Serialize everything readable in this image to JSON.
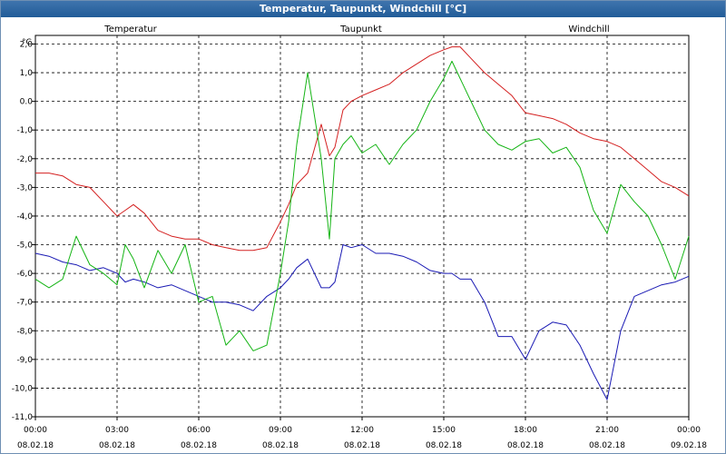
{
  "chart_data": {
    "type": "line",
    "title": "Temperatur, Taupunkt, Windchill [°C]",
    "ylabel": "°C",
    "xlabel": "",
    "ylim": [
      -11.0,
      2.3
    ],
    "xlim": [
      0,
      24
    ],
    "grid": true,
    "legend_position": "top",
    "y_ticks": [
      2.0,
      1.0,
      0.0,
      -1.0,
      -2.0,
      -3.0,
      -4.0,
      -5.0,
      -6.0,
      -7.0,
      -8.0,
      -9.0,
      -10.0,
      -11.0
    ],
    "y_tick_labels": [
      "2,0",
      "1,0",
      "0.0",
      "-1,0",
      "-2,0",
      "-3,0",
      "-4,0",
      "-5,0",
      "-6,0",
      "-7,0",
      "-8,0",
      "-9,0",
      "-10,0",
      "-11,0"
    ],
    "x_ticks": [
      0,
      3,
      6,
      9,
      12,
      15,
      18,
      21,
      24
    ],
    "x_tick_times": [
      "00:00",
      "03:00",
      "06:00",
      "09:00",
      "12:00",
      "15:00",
      "18:00",
      "21:00",
      "00:00"
    ],
    "x_tick_dates": [
      "08.02.18",
      "08.02.18",
      "08.02.18",
      "08.02.18",
      "08.02.18",
      "08.02.18",
      "08.02.18",
      "08.02.18",
      "09.02.18"
    ],
    "series": [
      {
        "name": "Temperatur",
        "color": "#d42020",
        "x": [
          0,
          0.5,
          1.0,
          1.5,
          2.0,
          2.5,
          3.0,
          3.3,
          3.6,
          4.0,
          4.5,
          5.0,
          5.5,
          6.0,
          6.5,
          7.0,
          7.5,
          8.0,
          8.5,
          9.0,
          9.3,
          9.6,
          10.0,
          10.5,
          10.8,
          11.0,
          11.3,
          11.6,
          12.0,
          12.5,
          13.0,
          13.5,
          14.0,
          14.5,
          15.0,
          15.3,
          15.6,
          16.0,
          16.5,
          17.0,
          17.5,
          18.0,
          18.5,
          19.0,
          19.5,
          20.0,
          20.5,
          21.0,
          21.5,
          22.0,
          22.5,
          23.0,
          23.5,
          24.0
        ],
        "values": [
          -2.5,
          -2.5,
          -2.6,
          -2.9,
          -3.0,
          -3.5,
          -4.0,
          -3.8,
          -3.6,
          -3.9,
          -4.5,
          -4.7,
          -4.8,
          -4.8,
          -5.0,
          -5.1,
          -5.2,
          -5.2,
          -5.1,
          -4.2,
          -3.6,
          -2.9,
          -2.5,
          -0.8,
          -1.9,
          -1.6,
          -0.3,
          0.0,
          0.2,
          0.4,
          0.6,
          1.0,
          1.3,
          1.6,
          1.8,
          1.9,
          1.9,
          1.5,
          1.0,
          0.6,
          0.2,
          -0.4,
          -0.5,
          -0.6,
          -0.8,
          -1.1,
          -1.3,
          -1.4,
          -1.6,
          -2.0,
          -2.4,
          -2.8,
          -3.0,
          -3.3
        ]
      },
      {
        "name": "Taupunkt",
        "color": "#1a1ab4",
        "x": [
          0,
          0.5,
          1.0,
          1.5,
          2.0,
          2.5,
          3.0,
          3.3,
          3.6,
          4.0,
          4.5,
          5.0,
          5.5,
          6.0,
          6.5,
          7.0,
          7.5,
          8.0,
          8.5,
          9.0,
          9.3,
          9.6,
          10.0,
          10.5,
          10.8,
          11.0,
          11.3,
          11.6,
          12.0,
          12.5,
          13.0,
          13.5,
          14.0,
          14.5,
          15.0,
          15.3,
          15.6,
          16.0,
          16.5,
          17.0,
          17.5,
          18.0,
          18.5,
          19.0,
          19.5,
          20.0,
          20.5,
          21.0,
          21.5,
          22.0,
          22.5,
          23.0,
          23.5,
          24.0
        ],
        "values": [
          -5.3,
          -5.4,
          -5.6,
          -5.7,
          -5.9,
          -5.8,
          -6.0,
          -6.3,
          -6.2,
          -6.3,
          -6.5,
          -6.4,
          -6.6,
          -6.8,
          -7.0,
          -7.0,
          -7.1,
          -7.3,
          -6.8,
          -6.5,
          -6.2,
          -5.8,
          -5.5,
          -6.5,
          -6.5,
          -6.3,
          -5.0,
          -5.1,
          -5.0,
          -5.3,
          -5.3,
          -5.4,
          -5.6,
          -5.9,
          -6.0,
          -6.0,
          -6.2,
          -6.2,
          -7.0,
          -8.2,
          -8.2,
          -9.0,
          -8.0,
          -7.7,
          -7.8,
          -8.5,
          -9.5,
          -10.4,
          -8.0,
          -6.8,
          -6.6,
          -6.4,
          -6.3,
          -6.1
        ]
      },
      {
        "name": "Windchill",
        "color": "#14b414",
        "x": [
          0,
          0.5,
          1.0,
          1.5,
          2.0,
          2.5,
          3.0,
          3.3,
          3.6,
          4.0,
          4.5,
          5.0,
          5.5,
          6.0,
          6.5,
          7.0,
          7.5,
          8.0,
          8.5,
          9.0,
          9.3,
          9.6,
          10.0,
          10.5,
          10.8,
          11.0,
          11.3,
          11.6,
          12.0,
          12.5,
          13.0,
          13.5,
          14.0,
          14.5,
          15.0,
          15.3,
          15.6,
          16.0,
          16.5,
          17.0,
          17.5,
          18.0,
          18.5,
          19.0,
          19.5,
          20.0,
          20.5,
          21.0,
          21.5,
          22.0,
          22.5,
          23.0,
          23.5,
          24.0
        ],
        "values": [
          -6.2,
          -6.5,
          -6.2,
          -4.7,
          -5.7,
          -6.0,
          -6.4,
          -5.0,
          -5.5,
          -6.5,
          -5.2,
          -6.0,
          -5.0,
          -7.0,
          -6.8,
          -8.5,
          -8.0,
          -8.7,
          -8.5,
          -6.0,
          -4.2,
          -1.5,
          1.0,
          -2.0,
          -4.8,
          -2.0,
          -1.5,
          -1.2,
          -1.8,
          -1.5,
          -2.2,
          -1.5,
          -1.0,
          0.0,
          0.8,
          1.4,
          0.8,
          0.0,
          -1.0,
          -1.5,
          -1.7,
          -1.4,
          -1.3,
          -1.8,
          -1.6,
          -2.3,
          -3.8,
          -4.6,
          -2.9,
          -3.5,
          -4.0,
          -5.0,
          -6.2,
          -4.7
        ]
      }
    ]
  }
}
